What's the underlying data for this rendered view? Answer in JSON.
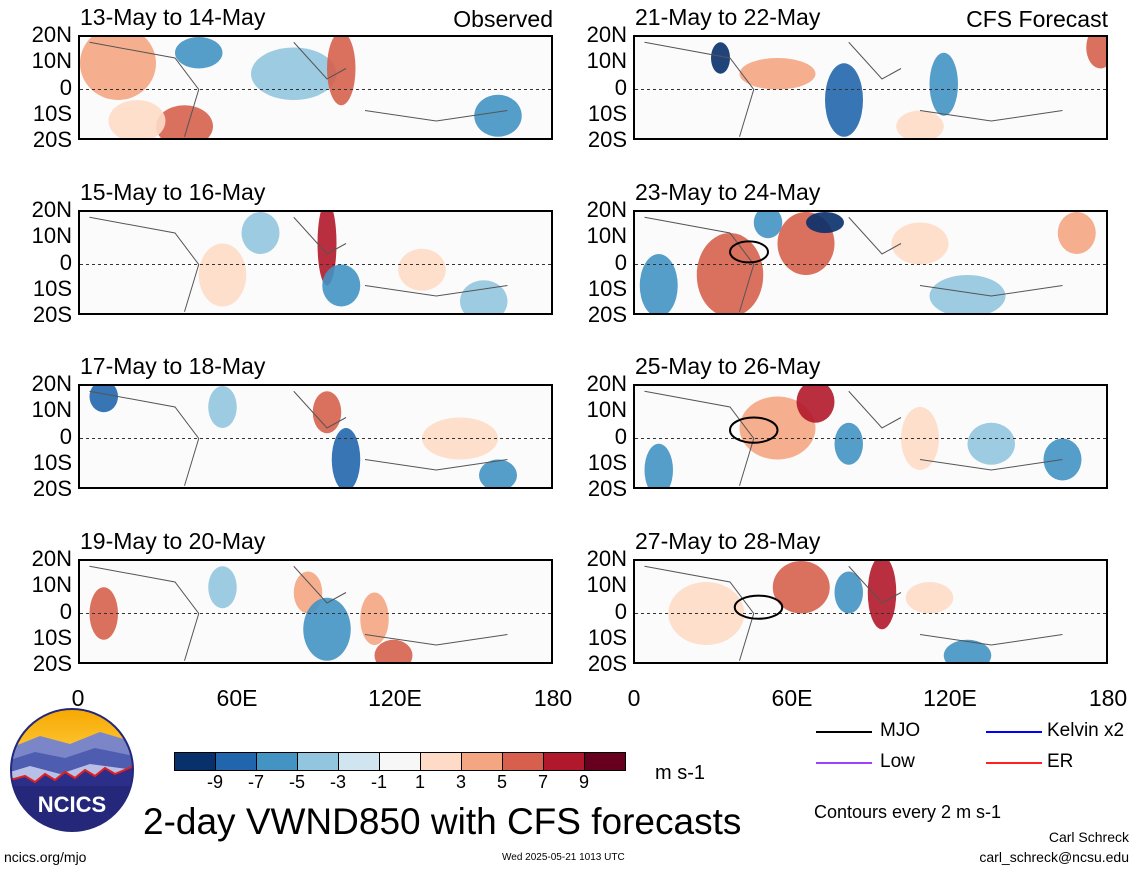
{
  "panels_left": [
    {
      "title": "13-May to 14-May",
      "tag": "Observed"
    },
    {
      "title": "15-May to 16-May",
      "tag": ""
    },
    {
      "title": "17-May to 18-May",
      "tag": ""
    },
    {
      "title": "19-May to 20-May",
      "tag": ""
    }
  ],
  "panels_right": [
    {
      "title": "21-May to 22-May",
      "tag": "CFS Forecast"
    },
    {
      "title": "23-May to 24-May",
      "tag": ""
    },
    {
      "title": "25-May to 26-May",
      "tag": ""
    },
    {
      "title": "27-May to 28-May",
      "tag": ""
    }
  ],
  "lat_labels": [
    "20N",
    "10N",
    "0",
    "10S",
    "20S"
  ],
  "lon_labels": [
    "0",
    "60E",
    "120E",
    "180"
  ],
  "colorbar": {
    "colors": [
      "#08306b",
      "#2166ac",
      "#4393c3",
      "#92c5de",
      "#d1e5f0",
      "#f7f7f7",
      "#fddbc7",
      "#f4a582",
      "#d6604d",
      "#b2182b",
      "#67001f"
    ],
    "labels": [
      "-9",
      "-7",
      "-5",
      "-3",
      "-1",
      "1",
      "3",
      "5",
      "7",
      "9"
    ],
    "units": "m s-1"
  },
  "legend": {
    "mjo": "MJO",
    "kelvin": "Kelvin x2",
    "low": "Low",
    "er": "ER",
    "mjo_color": "#000000",
    "kelvin_color": "#0000ff",
    "low_color": "#a040ff",
    "er_color": "#ff2020"
  },
  "contour_note": "Contours every 2 m s-1",
  "main_title": "2-day VWND850 with CFS forecasts",
  "logo_text": "NCICS",
  "footer": {
    "url": "ncics.org/mjo",
    "timestamp": "Wed 2025-05-21 1013 UTC",
    "author": "Carl Schreck",
    "email": "carl_schreck@ncsu.edu"
  }
}
